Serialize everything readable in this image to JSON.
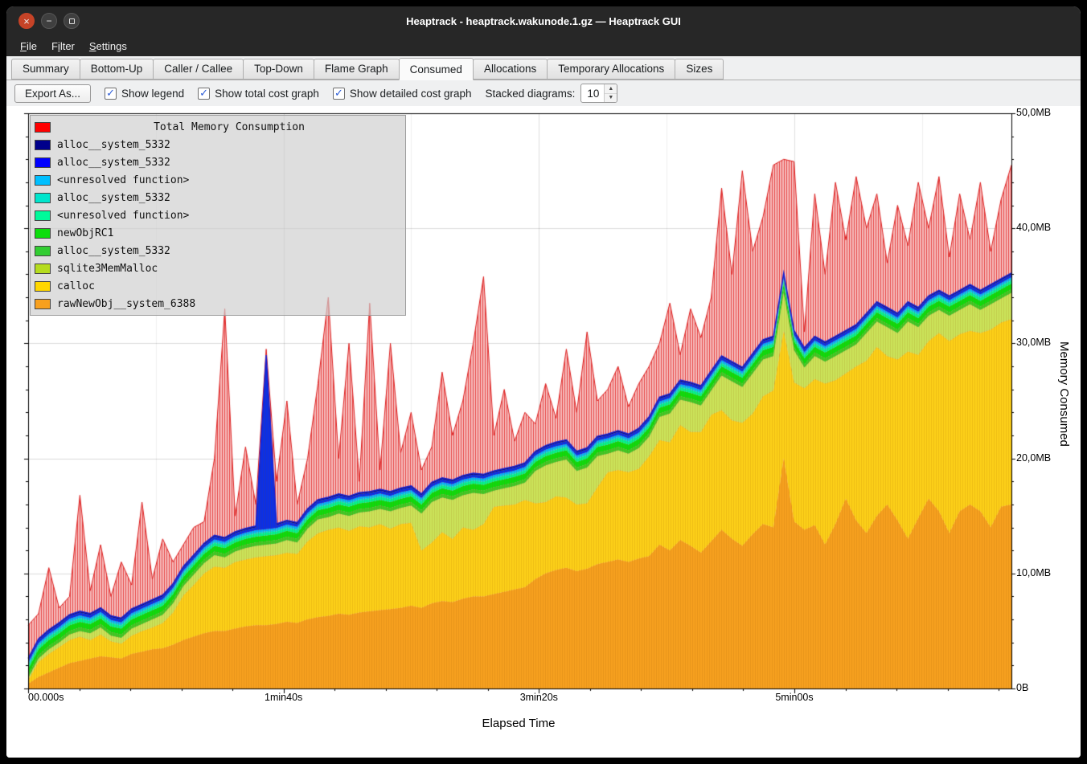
{
  "window": {
    "title": "Heaptrack - heaptrack.wakunode.1.gz — Heaptrack GUI"
  },
  "menu": {
    "items": [
      {
        "label": "File",
        "accel_index": 0
      },
      {
        "label": "Filter",
        "accel_index": 1
      },
      {
        "label": "Settings",
        "accel_index": 0
      }
    ]
  },
  "tabs": {
    "active_index": 5,
    "items": [
      {
        "label": "Summary"
      },
      {
        "label": "Bottom-Up"
      },
      {
        "label": "Caller / Callee"
      },
      {
        "label": "Top-Down"
      },
      {
        "label": "Flame Graph"
      },
      {
        "label": "Consumed"
      },
      {
        "label": "Allocations"
      },
      {
        "label": "Temporary Allocations"
      },
      {
        "label": "Sizes"
      }
    ]
  },
  "toolbar": {
    "export_button": "Export As...",
    "checkboxes": [
      {
        "label": "Show legend",
        "checked": true
      },
      {
        "label": "Show total cost graph",
        "checked": true
      },
      {
        "label": "Show detailed cost graph",
        "checked": true
      }
    ],
    "stacked_label": "Stacked diagrams:",
    "stacked_value": "10"
  },
  "colors": {
    "titlebar": "#272727",
    "content_bg": "#eff0f1",
    "close_button": "#c64327",
    "checkbox_check": "#2a5bd7",
    "plot_bg": "#ffffff"
  },
  "chart_data": {
    "type": "area",
    "title": "Total Memory Consumption",
    "xlabel": "Elapsed Time",
    "ylabel": "Memory Consumed",
    "xlim": [
      0,
      385
    ],
    "ylim": [
      0,
      50
    ],
    "grid": true,
    "legend_position": "top-left",
    "y_ticks": [
      {
        "v": 0,
        "label": "0B"
      },
      {
        "v": 10,
        "label": "10,0MB"
      },
      {
        "v": 20,
        "label": "20,0MB"
      },
      {
        "v": 30,
        "label": "30,0MB"
      },
      {
        "v": 40,
        "label": "40,0MB"
      },
      {
        "v": 50,
        "label": "50,0MB"
      }
    ],
    "x_ticks": [
      {
        "t": 0,
        "label": "00.000s"
      },
      {
        "t": 100,
        "label": "1min40s"
      },
      {
        "t": 200,
        "label": "3min20s"
      },
      {
        "t": 300,
        "label": "5min00s"
      }
    ],
    "legend": [
      {
        "label": "Total Memory Consumption",
        "color": "#ff0000",
        "is_title": true
      },
      {
        "label": "alloc__system_5332",
        "color": "#00008b"
      },
      {
        "label": "alloc__system_5332",
        "color": "#0000ff"
      },
      {
        "label": "<unresolved function>",
        "color": "#00bfff"
      },
      {
        "label": "alloc__system_5332",
        "color": "#00e5cc"
      },
      {
        "label": "<unresolved function>",
        "color": "#00fa9a"
      },
      {
        "label": "newObjRC1",
        "color": "#0ddd0d"
      },
      {
        "label": "alloc__system_5332",
        "color": "#32cd32"
      },
      {
        "label": "sqlite3MemMalloc",
        "color": "#b5dc1e"
      },
      {
        "label": "calloc",
        "color": "#ffd700"
      },
      {
        "label": "rawNewObj__system_6388",
        "color": "#f7a01e"
      }
    ],
    "total": {
      "name": "Total Memory Consumption",
      "color": "#dd1f1f",
      "unit": "MB",
      "values": [
        5.5,
        6.5,
        10.5,
        7.0,
        8.0,
        16.8,
        8.5,
        12.5,
        8.0,
        11.0,
        9.0,
        16.2,
        9.5,
        13.0,
        11.0,
        12.5,
        14.0,
        14.5,
        20.0,
        33.0,
        15.0,
        21.0,
        16.0,
        29.5,
        18.0,
        25.0,
        16.0,
        20.0,
        26.5,
        34.0,
        20.0,
        30.0,
        18.0,
        33.5,
        19.0,
        30.0,
        20.5,
        24.0,
        19.0,
        21.0,
        27.5,
        22.0,
        25.0,
        30.0,
        35.8,
        22.0,
        26.0,
        21.5,
        24.0,
        23.0,
        26.5,
        23.5,
        29.5,
        24.0,
        31.0,
        25.0,
        26.0,
        28.0,
        24.5,
        26.5,
        28.0,
        30.0,
        33.5,
        29.0,
        33.0,
        30.5,
        34.0,
        43.5,
        36.0,
        45.0,
        38.0,
        41.0,
        45.5,
        46.0,
        45.8,
        31.0,
        43.0,
        36.0,
        44.0,
        39.0,
        44.5,
        40.0,
        43.0,
        37.0,
        42.0,
        38.5,
        44.0,
        40.0,
        44.5,
        37.5,
        43.0,
        39.0,
        44.0,
        38.0,
        42.5,
        45.5
      ]
    },
    "stack": [
      {
        "name": "rawNewObj__system_6388",
        "color": "#f7a11f",
        "unit": "MB",
        "values": [
          0.4,
          1.0,
          1.4,
          1.8,
          2.2,
          2.4,
          2.6,
          2.8,
          2.7,
          2.6,
          3.0,
          3.2,
          3.4,
          3.5,
          3.8,
          4.2,
          4.5,
          4.8,
          5.0,
          5.0,
          5.2,
          5.4,
          5.5,
          5.5,
          5.6,
          5.8,
          5.7,
          6.0,
          6.2,
          6.3,
          6.5,
          6.4,
          6.6,
          6.7,
          6.8,
          6.9,
          7.0,
          7.2,
          7.0,
          7.4,
          7.6,
          7.5,
          7.8,
          8.0,
          8.0,
          8.2,
          8.4,
          8.6,
          8.8,
          9.5,
          10.0,
          10.3,
          10.5,
          10.2,
          10.4,
          10.8,
          11.0,
          11.2,
          11.0,
          11.3,
          11.5,
          12.5,
          12.0,
          12.9,
          12.4,
          11.8,
          12.8,
          13.8,
          13.0,
          12.4,
          13.4,
          14.3,
          14.0,
          20.0,
          14.5,
          13.8,
          14.2,
          12.5,
          14.3,
          16.5,
          14.6,
          13.5,
          15.0,
          16.0,
          14.6,
          13.0,
          14.8,
          16.5,
          15.4,
          13.5,
          15.4,
          16.0,
          15.4,
          14.0,
          15.8,
          16.0
        ]
      },
      {
        "name": "calloc",
        "color": "#fdd118",
        "unit": "MB",
        "values": [
          0.3,
          1.3,
          1.6,
          1.8,
          2.0,
          2.1,
          1.6,
          1.9,
          1.4,
          1.3,
          1.6,
          1.8,
          1.9,
          2.2,
          2.8,
          3.9,
          4.5,
          5.2,
          5.6,
          5.5,
          5.8,
          5.8,
          5.9,
          6.0,
          6.0,
          6.0,
          6.0,
          6.8,
          7.3,
          7.5,
          7.5,
          7.3,
          7.5,
          7.3,
          7.5,
          7.0,
          7.3,
          7.2,
          5.0,
          5.3,
          6.0,
          5.5,
          6.2,
          5.8,
          6.3,
          7.6,
          7.5,
          7.4,
          7.6,
          6.6,
          6.2,
          6.4,
          6.1,
          5.8,
          5.7,
          6.7,
          7.8,
          7.8,
          7.8,
          7.8,
          8.7,
          9.1,
          9.4,
          10.0,
          9.9,
          10.5,
          11.0,
          10.4,
          10.3,
          10.7,
          10.5,
          11.1,
          11.9,
          11.1,
          12.1,
          12.3,
          12.7,
          14.0,
          12.5,
          10.9,
          13.4,
          15.0,
          14.7,
          12.9,
          14.0,
          16.3,
          14.2,
          13.7,
          15.5,
          16.7,
          15.4,
          15.1,
          15.5,
          17.2,
          16.0,
          16.1
        ]
      },
      {
        "name": "sqlite3MemMalloc",
        "color": "#cbe45a",
        "unit": "MB",
        "values": [
          0.2,
          0.3,
          0.4,
          0.4,
          0.5,
          0.5,
          0.6,
          0.6,
          0.5,
          0.5,
          0.6,
          0.6,
          0.7,
          0.7,
          0.8,
          0.8,
          0.9,
          0.9,
          1.0,
          0.9,
          0.9,
          1.0,
          1.0,
          1.0,
          1.0,
          1.1,
          1.0,
          1.1,
          1.2,
          1.1,
          1.2,
          1.3,
          1.2,
          1.4,
          1.3,
          1.5,
          1.4,
          1.5,
          3.2,
          3.5,
          3.0,
          3.4,
          2.8,
          3.2,
          2.6,
          1.4,
          1.5,
          1.6,
          1.5,
          2.8,
          3.2,
          3.0,
          3.3,
          2.9,
          3.1,
          2.7,
          1.6,
          1.7,
          1.6,
          1.8,
          1.7,
          2.0,
          2.5,
          2.2,
          2.6,
          2.3,
          2.1,
          3.0,
          3.4,
          3.1,
          3.5,
          3.2,
          3.0,
          3.3,
          2.8,
          1.8,
          2.0,
          1.9,
          2.1,
          2.0,
          1.9,
          2.4,
          2.2,
          2.5,
          2.3,
          2.6,
          2.4,
          2.2,
          2.0,
          2.2,
          2.1,
          2.3,
          2.0,
          2.2,
          2.1,
          2.3
        ]
      },
      {
        "name": "alloc__system_5332",
        "color": "#3fcb27",
        "unit": "MB",
        "thickness": 0.3
      },
      {
        "name": "newObjRC1",
        "color": "#0ddd0d",
        "unit": "MB",
        "thickness": 0.5
      },
      {
        "name": "<unresolved function>",
        "color": "#00f78f",
        "unit": "MB",
        "thickness": 0.25
      },
      {
        "name": "alloc__system_5332",
        "color": "#00e0cf",
        "unit": "MB",
        "thickness": 0.12
      },
      {
        "name": "<unresolved function>",
        "color": "#00b4ff",
        "unit": "MB",
        "thickness": 0.18
      },
      {
        "name": "alloc__system_5332",
        "color": "#0a30e8",
        "unit": "MB",
        "values": [
          0.25,
          0.25,
          0.25,
          0.25,
          0.25,
          0.25,
          0.25,
          0.25,
          0.25,
          0.25,
          0.25,
          0.25,
          0.25,
          0.25,
          0.25,
          0.25,
          0.25,
          0.25,
          0.25,
          0.25,
          0.25,
          0.25,
          0.25,
          15.0,
          0.25,
          0.25,
          0.25,
          0.25,
          0.25,
          0.25,
          0.25,
          0.25,
          0.25,
          0.25,
          0.25,
          0.25,
          0.25,
          0.25,
          0.25,
          0.25,
          0.25,
          0.25,
          0.25,
          0.25,
          0.25,
          0.25,
          0.25,
          0.25,
          0.25,
          0.25,
          0.25,
          0.25,
          0.25,
          0.25,
          0.25,
          0.25,
          0.25,
          0.25,
          0.25,
          0.25,
          0.25,
          0.25,
          0.25,
          0.25,
          0.25,
          0.25,
          0.25,
          0.25,
          0.25,
          0.25,
          0.25,
          0.25,
          0.25,
          0.25,
          0.25,
          0.25,
          0.25,
          0.25,
          0.25,
          0.25,
          0.25,
          0.25,
          0.25,
          0.25,
          0.25,
          0.25,
          0.25,
          0.25,
          0.25,
          0.25,
          0.25,
          0.25,
          0.25,
          0.25,
          0.25,
          0.25
        ]
      },
      {
        "name": "alloc__system_5332",
        "color": "#000d8a",
        "unit": "MB",
        "thickness": 0.12
      }
    ]
  }
}
